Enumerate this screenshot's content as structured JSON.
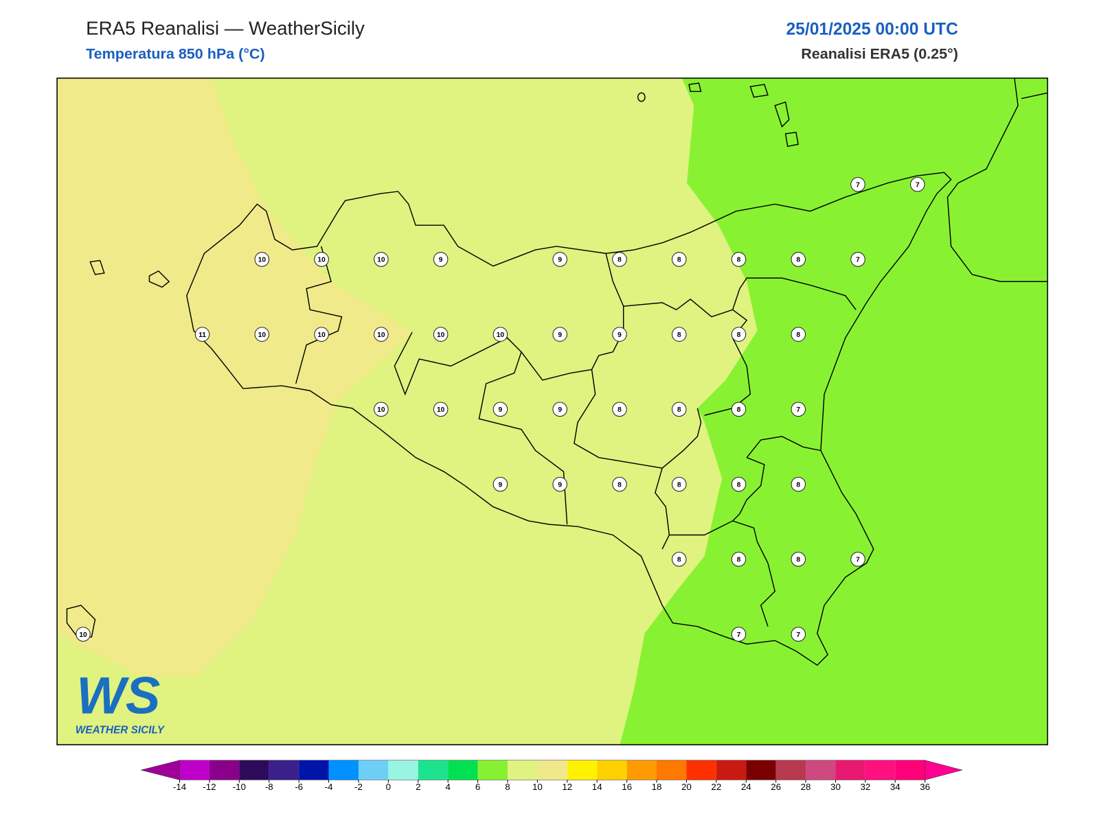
{
  "header": {
    "title": "ERA5 Reanalisi — WeatherSicily",
    "subtitle": "Temperatura 850 hPa (°C)",
    "datetime": "25/01/2025 00:00 UTC",
    "source": "Reanalisi ERA5 (0.25°)"
  },
  "stations": {
    "rows": [
      [
        null,
        null,
        null,
        null,
        null,
        null,
        null,
        null,
        null,
        null,
        null,
        null,
        null,
        7,
        7
      ],
      [
        null,
        null,
        null,
        10,
        10,
        10,
        9,
        null,
        9,
        8,
        8,
        8,
        8,
        7,
        null
      ],
      [
        null,
        null,
        11,
        10,
        10,
        10,
        10,
        10,
        9,
        9,
        8,
        8,
        8,
        null,
        null
      ],
      [
        null,
        null,
        null,
        null,
        null,
        10,
        10,
        9,
        9,
        8,
        8,
        8,
        7,
        null,
        null
      ],
      [
        null,
        null,
        null,
        null,
        null,
        null,
        null,
        9,
        9,
        8,
        8,
        8,
        8,
        null,
        null
      ],
      [
        null,
        null,
        null,
        null,
        null,
        null,
        null,
        null,
        null,
        null,
        8,
        8,
        8,
        7,
        null
      ],
      [
        10,
        null,
        null,
        null,
        null,
        null,
        null,
        null,
        null,
        null,
        null,
        7,
        7,
        null,
        null
      ]
    ]
  },
  "colorbar": {
    "ticks": [
      -14,
      -12,
      -10,
      -8,
      -6,
      -4,
      -2,
      0,
      2,
      4,
      6,
      8,
      10,
      12,
      14,
      16,
      18,
      20,
      22,
      24,
      26,
      28,
      30,
      32,
      34,
      36
    ],
    "colors": [
      "#c000c8",
      "#8b008b",
      "#2e0a5a",
      "#3b1f8a",
      "#0014a8",
      "#0090ff",
      "#6ecff6",
      "#98f5e1",
      "#1ee38e",
      "#00e050",
      "#88f032",
      "#e0f280",
      "#f0e88a",
      "#fff200",
      "#ffd000",
      "#ff9a00",
      "#ff7800",
      "#ff3000",
      "#c81a10",
      "#7a0000",
      "#b83a50",
      "#d04880",
      "#e81870",
      "#ff1080",
      "#ff0078"
    ],
    "extend_colors": [
      "#9e0099",
      "#ff0090"
    ]
  },
  "logo": {
    "mark": "WS",
    "text": "WEATHER SICILY"
  }
}
